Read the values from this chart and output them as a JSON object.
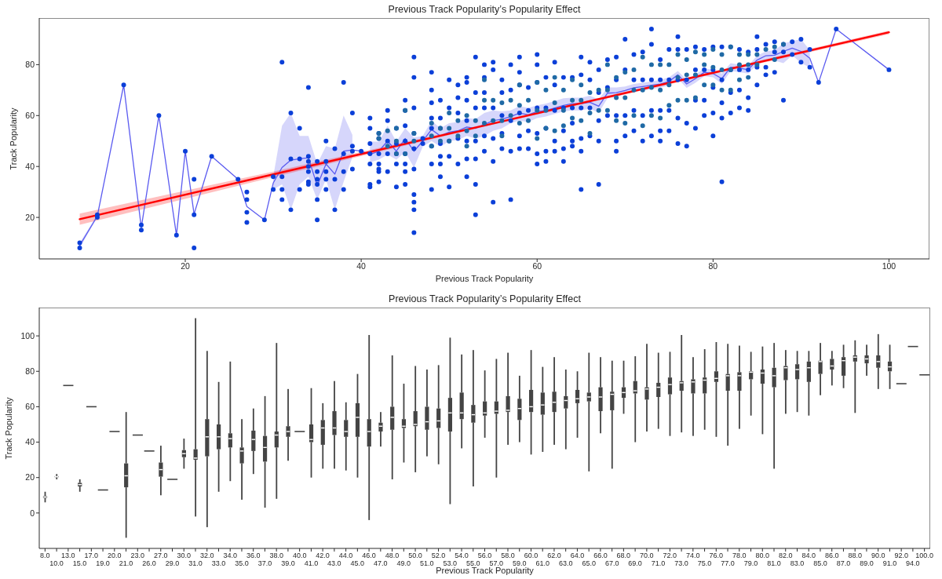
{
  "chart_data": [
    {
      "type": "scatter",
      "title": "Previous Track Popularity’s Popularity Effect",
      "xlabel": "Previous Track Popularity",
      "ylabel": "Track Popularity",
      "xlim": [
        3.4,
        104.6
      ],
      "ylim": [
        3.7,
        98.3
      ],
      "xticks": [
        20,
        40,
        60,
        80,
        100
      ],
      "yticks": [
        20,
        40,
        60,
        80
      ],
      "series": [
        {
          "type": "scatter",
          "color": "#0b3fd8",
          "marker": "circle",
          "x": [
            8,
            8,
            10,
            10,
            13,
            15,
            15,
            17,
            19,
            20,
            21,
            21,
            21,
            23,
            26,
            27,
            27,
            27,
            27,
            29,
            30,
            30,
            31,
            31,
            31,
            31,
            32,
            32,
            32,
            33,
            33,
            33,
            34,
            34,
            34,
            34,
            34,
            34,
            34,
            35,
            35,
            35,
            35,
            35,
            35,
            36,
            36,
            36,
            36,
            36,
            37,
            37,
            37,
            38,
            38,
            38,
            38,
            39,
            39,
            39,
            39,
            40,
            41,
            41,
            41,
            41,
            41,
            41,
            41,
            42,
            42,
            42,
            42,
            42,
            42,
            42,
            43,
            43,
            43,
            43,
            43,
            44,
            44,
            44,
            44,
            44,
            45,
            45,
            45,
            45,
            45,
            45,
            45,
            45,
            46,
            46,
            46,
            46,
            46,
            46,
            46,
            46,
            46,
            46,
            47,
            47,
            48,
            48,
            48,
            48,
            48,
            48,
            48,
            48,
            49,
            49,
            49,
            49,
            49,
            49,
            49,
            50,
            50,
            50,
            50,
            50,
            51,
            51,
            51,
            51,
            51,
            52,
            52,
            52,
            52,
            52,
            52,
            52,
            53,
            53,
            53,
            53,
            53,
            53,
            53,
            54,
            54,
            54,
            54,
            54,
            54,
            55,
            55,
            55,
            55,
            55,
            55,
            56,
            56,
            56,
            56,
            56,
            57,
            57,
            57,
            57,
            57,
            58,
            58,
            58,
            58,
            58,
            58,
            59,
            59,
            59,
            59,
            60,
            60,
            60,
            60,
            60,
            60,
            60,
            61,
            61,
            61,
            61,
            61,
            62,
            62,
            62,
            62,
            62,
            63,
            63,
            63,
            63,
            63,
            64,
            64,
            64,
            64,
            64,
            65,
            65,
            65,
            65,
            65,
            65,
            66,
            66,
            66,
            66,
            67,
            67,
            67,
            67,
            67,
            68,
            68,
            68,
            69,
            69,
            69,
            69,
            69,
            70,
            70,
            70,
            70,
            71,
            71,
            71,
            71,
            72,
            72,
            72,
            72,
            73,
            73,
            73,
            73,
            73,
            74,
            74,
            74,
            74,
            74,
            75,
            75,
            75,
            75,
            76,
            76,
            76,
            76,
            76,
            77,
            77,
            77,
            77,
            78,
            78,
            78,
            78,
            79,
            79,
            79,
            79,
            80,
            80,
            80,
            80,
            80,
            81,
            81,
            81,
            81,
            81,
            82,
            82,
            82,
            82,
            83,
            83,
            83,
            83,
            84,
            84,
            84,
            84,
            85,
            85,
            85,
            85,
            86,
            86,
            86,
            87,
            87,
            87,
            88,
            88,
            88,
            89,
            89,
            90,
            90,
            91,
            91,
            92,
            94,
            100
          ],
          "values": [
            10,
            8,
            21,
            20,
            72,
            17,
            15,
            60,
            13,
            46,
            35,
            21,
            8,
            44,
            35,
            30,
            27,
            22,
            18,
            19,
            36,
            31,
            81,
            36,
            31,
            27,
            61,
            43,
            23,
            55,
            43,
            31,
            71,
            44,
            42,
            40,
            38,
            34,
            33,
            42,
            38,
            35,
            33,
            27,
            19,
            50,
            42,
            38,
            35,
            31,
            47,
            35,
            23,
            73,
            45,
            38,
            31,
            61,
            48,
            46,
            39,
            46,
            59,
            55,
            49,
            45,
            41,
            33,
            32,
            53,
            51,
            45,
            41,
            39,
            38,
            34,
            62,
            58,
            50,
            45,
            38,
            55,
            49,
            45,
            41,
            32,
            66,
            62,
            56,
            50,
            45,
            41,
            38,
            33,
            83,
            75,
            63,
            53,
            47,
            39,
            29,
            26,
            23,
            14,
            51,
            49,
            77,
            70,
            65,
            59,
            55,
            48,
            41,
            31,
            66,
            59,
            55,
            49,
            44,
            41,
            36,
            74,
            63,
            50,
            44,
            32,
            72,
            67,
            61,
            51,
            41,
            75,
            73,
            66,
            58,
            50,
            43,
            36,
            83,
            69,
            63,
            50,
            43,
            33,
            21,
            80,
            75,
            69,
            63,
            52,
            46,
            81,
            78,
            63,
            51,
            42,
            26,
            74,
            69,
            60,
            53,
            47,
            80,
            70,
            58,
            46,
            27,
            83,
            77,
            72,
            61,
            52,
            47,
            71,
            62,
            54,
            47,
            84,
            80,
            73,
            63,
            53,
            45,
            41,
            75,
            63,
            55,
            46,
            42,
            81,
            72,
            62,
            50,
            46,
            75,
            63,
            54,
            47,
            42,
            75,
            63,
            57,
            50,
            48,
            83,
            76,
            63,
            51,
            46,
            31,
            81,
            74,
            63,
            52,
            78,
            69,
            58,
            50,
            33,
            82,
            71,
            60,
            83,
            74,
            60,
            50,
            46,
            90,
            78,
            60,
            52,
            84,
            74,
            62,
            54,
            85,
            74,
            60,
            50,
            94,
            88,
            74,
            62,
            52,
            82,
            74,
            62,
            54,
            50,
            86,
            74,
            62,
            54,
            91,
            86,
            74,
            59,
            49,
            86,
            74,
            57,
            48,
            87,
            78,
            66,
            55,
            86,
            78,
            66,
            60,
            87,
            78,
            71,
            61,
            52,
            87,
            74,
            65,
            59,
            34,
            87,
            78,
            69,
            61,
            86,
            78,
            70,
            63,
            85,
            78,
            67,
            62,
            91,
            86,
            79,
            72,
            88,
            79,
            76,
            89,
            85,
            77,
            88,
            85,
            66,
            89,
            84,
            90,
            81,
            86,
            79,
            73,
            94,
            78
          ]
        },
        {
          "type": "scatter",
          "color": "#1f6aa5",
          "marker": "circle",
          "x": [
            42,
            42,
            43,
            43,
            44,
            44,
            44,
            45,
            45,
            46,
            46,
            48,
            48,
            48,
            49,
            49,
            50,
            50,
            50,
            51,
            51,
            52,
            52,
            52,
            53,
            53,
            54,
            54,
            54,
            55,
            55,
            56,
            56,
            56,
            57,
            57,
            58,
            58,
            58,
            59,
            59,
            60,
            60,
            60,
            61,
            61,
            61,
            62,
            62,
            62,
            63,
            63,
            63,
            64,
            64,
            64,
            65,
            65,
            65,
            66,
            66,
            66,
            67,
            67,
            68,
            68,
            68,
            69,
            69,
            69,
            70,
            70,
            70,
            71,
            71,
            71,
            72,
            72,
            72,
            73,
            73,
            73,
            74,
            74,
            74,
            75,
            75,
            75,
            76,
            76,
            76,
            77,
            77,
            77,
            78,
            78,
            78,
            79,
            79,
            79,
            80,
            80,
            80,
            81,
            81,
            81,
            82,
            82,
            82,
            83,
            83,
            83,
            84,
            84,
            84,
            85,
            85,
            86,
            87,
            87,
            88
          ],
          "values": [
            53,
            51,
            54,
            48,
            55,
            50,
            45,
            62,
            45,
            53,
            50,
            57,
            52,
            48,
            55,
            50,
            61,
            55,
            50,
            58,
            52,
            60,
            54,
            48,
            58,
            52,
            74,
            66,
            57,
            66,
            58,
            65,
            58,
            52,
            66,
            60,
            72,
            64,
            57,
            66,
            58,
            73,
            62,
            51,
            70,
            62,
            55,
            75,
            65,
            54,
            70,
            62,
            56,
            74,
            66,
            59,
            72,
            66,
            58,
            69,
            61,
            53,
            70,
            62,
            80,
            70,
            62,
            75,
            67,
            58,
            77,
            67,
            57,
            78,
            70,
            60,
            83,
            70,
            56,
            80,
            71,
            60,
            80,
            70,
            59,
            80,
            72,
            64,
            84,
            75,
            66,
            82,
            76,
            66,
            85,
            76,
            67,
            84,
            80,
            72,
            86,
            79,
            72,
            84,
            78,
            70,
            87,
            78,
            70,
            84,
            80,
            74,
            84,
            80,
            75,
            84,
            80,
            86,
            87,
            82,
            88
          ]
        },
        {
          "type": "line",
          "color": "#5b5bf0",
          "x": [
            8,
            10,
            13,
            15,
            17,
            19,
            20,
            21,
            23,
            26,
            27,
            29,
            30,
            31,
            32,
            33,
            34,
            35,
            36,
            37,
            38,
            39,
            40,
            41,
            42,
            43,
            44,
            45,
            46,
            47,
            48,
            49,
            50,
            51,
            52,
            53,
            54,
            55,
            56,
            57,
            58,
            59,
            60,
            61,
            62,
            63,
            64,
            65,
            66,
            67,
            68,
            69,
            70,
            71,
            72,
            73,
            74,
            75,
            76,
            77,
            78,
            79,
            80,
            81,
            82,
            83,
            84,
            85,
            86,
            87,
            88,
            89,
            90,
            91,
            92,
            94,
            100
          ],
          "values": [
            9,
            20.5,
            72,
            16,
            60,
            13,
            46,
            21.3,
            44,
            35,
            24.3,
            19,
            33.5,
            39.6,
            42.5,
            43,
            43.4,
            32.4,
            41,
            37,
            46,
            46.5,
            46,
            44.7,
            46,
            50,
            46,
            51,
            46,
            50,
            54.5,
            52,
            53.5,
            54,
            55.5,
            55,
            56.5,
            58,
            58.6,
            59.6,
            61,
            60.3,
            61.6,
            62,
            63,
            64,
            64.7,
            64.7,
            65.2,
            63.7,
            68.8,
            69,
            69.8,
            70.9,
            71.4,
            71.9,
            72.4,
            73.4,
            76,
            72.4,
            74.5,
            77,
            76.5,
            74.5,
            79,
            78.6,
            78,
            81.8,
            83.5,
            83.7,
            85.2,
            86.5,
            85.2,
            82.5,
            73,
            94,
            78
          ],
          "lower": [
            8,
            20,
            null,
            null,
            null,
            null,
            null,
            null,
            null,
            null,
            null,
            null,
            31,
            33,
            23,
            33,
            36,
            27,
            35,
            23,
            34,
            43.7,
            null,
            41.6,
            42.7,
            44.7,
            42.7,
            45.7,
            39.6,
            47.8,
            50,
            47.8,
            50,
            50.4,
            52,
            51,
            52,
            54,
            55,
            57,
            58,
            57.5,
            59,
            59.6,
            60.6,
            61.6,
            62,
            62,
            62.7,
            61.1,
            66.8,
            67.3,
            68.3,
            69.3,
            69.8,
            70.4,
            70.9,
            71.9,
            74.5,
            70.9,
            72.9,
            75.5,
            75,
            72.4,
            77.5,
            77,
            76.5,
            80,
            81.6,
            81.6,
            80.6,
            83.7,
            80.6,
            79,
            null,
            null,
            null
          ],
          "upper": [
            10,
            21,
            null,
            null,
            null,
            null,
            null,
            null,
            null,
            null,
            null,
            null,
            36,
            56,
            61,
            52,
            52,
            41,
            48,
            47,
            60,
            52.4,
            null,
            49.8,
            49.8,
            56,
            49.8,
            55,
            51.4,
            52,
            58,
            55,
            57,
            57.5,
            59,
            58.6,
            61,
            62,
            61.6,
            62,
            63.7,
            63,
            64,
            64.7,
            65.7,
            66.8,
            67,
            67,
            67.8,
            66.3,
            71,
            71,
            71.4,
            72.4,
            72.9,
            73.4,
            74,
            75,
            77.5,
            74,
            76,
            78.6,
            78,
            76.5,
            80.6,
            80,
            79.6,
            83.5,
            85.2,
            85.7,
            88.3,
            89.3,
            90,
            85.7,
            null,
            null,
            null
          ]
        },
        {
          "type": "line",
          "color": "#ff0000",
          "x": [
            8,
            30,
            55,
            80,
            100
          ],
          "values": [
            19.3,
            36.9,
            56.9,
            76.8,
            92.7
          ],
          "lower": [
            17.1,
            35.8,
            56.5,
            76.3,
            92.0
          ],
          "upper": [
            21.5,
            38.0,
            57.3,
            77.3,
            93.4
          ]
        }
      ]
    },
    {
      "type": "box",
      "title": "Previous Track Popularity’s Popularity Effect",
      "xlabel": "Previous Track Popularity",
      "ylabel": "Track Popularity",
      "ylim": [
        -20,
        116
      ],
      "yticks": [
        0,
        20,
        40,
        60,
        80,
        100
      ],
      "color": "#444444",
      "categories": [
        "8.0",
        "10.0",
        "13.0",
        "15.0",
        "17.0",
        "19.0",
        "20.0",
        "21.0",
        "23.0",
        "26.0",
        "27.0",
        "29.0",
        "30.0",
        "31.0",
        "32.0",
        "33.0",
        "34.0",
        "35.0",
        "36.0",
        "37.0",
        "38.0",
        "39.0",
        "40.0",
        "41.0",
        "42.0",
        "43.0",
        "44.0",
        "45.0",
        "46.0",
        "47.0",
        "48.0",
        "49.0",
        "50.0",
        "51.0",
        "52.0",
        "53.0",
        "54.0",
        "55.0",
        "56.0",
        "57.0",
        "58.0",
        "59.0",
        "60.0",
        "61.0",
        "62.0",
        "63.0",
        "64.0",
        "65.0",
        "66.0",
        "67.0",
        "68.0",
        "69.0",
        "70.0",
        "71.0",
        "72.0",
        "73.0",
        "74.0",
        "75.0",
        "76.0",
        "77.0",
        "78.0",
        "79.0",
        "80.0",
        "81.0",
        "82.0",
        "83.0",
        "84.0",
        "85.0",
        "86.0",
        "87.0",
        "88.0",
        "89.0",
        "90.0",
        "91.0",
        "92.0",
        "94.0",
        "100.0"
      ],
      "boxes": [
        {
          "low": 6,
          "q1": 8.5,
          "median": 9,
          "q3": 9.5,
          "high": 12
        },
        {
          "low": 19,
          "q1": 20.2,
          "median": 20.5,
          "q3": 20.8,
          "high": 22
        },
        {
          "low": 72,
          "q1": 72,
          "median": 72,
          "q3": 72,
          "high": 72
        },
        {
          "low": 12,
          "q1": 15,
          "median": 16,
          "q3": 17,
          "high": 19
        },
        {
          "low": 60,
          "q1": 60,
          "median": 60,
          "q3": 60,
          "high": 60
        },
        {
          "low": 13,
          "q1": 13,
          "median": 13,
          "q3": 13,
          "high": 13
        },
        {
          "low": 46,
          "q1": 46,
          "median": 46,
          "q3": 46,
          "high": 46
        },
        {
          "low": -14,
          "q1": 14.5,
          "median": 21,
          "q3": 28,
          "high": 57
        },
        {
          "low": 44,
          "q1": 44,
          "median": 44,
          "q3": 44,
          "high": 44
        },
        {
          "low": 35,
          "q1": 35,
          "median": 35,
          "q3": 35,
          "high": 35
        },
        {
          "low": 10,
          "q1": 20.5,
          "median": 24.5,
          "q3": 28.5,
          "high": 38
        },
        {
          "low": 19,
          "q1": 19,
          "median": 19,
          "q3": 19,
          "high": 19
        },
        {
          "low": 25,
          "q1": 31.5,
          "median": 33.5,
          "q3": 35.5,
          "high": 42
        },
        {
          "low": -2,
          "q1": 30,
          "median": 31,
          "q3": 36,
          "high": 110
        },
        {
          "low": -8,
          "q1": 32,
          "median": 43,
          "q3": 53,
          "high": 91.5
        },
        {
          "low": 12,
          "q1": 36,
          "median": 43,
          "q3": 50,
          "high": 74
        },
        {
          "low": 18,
          "q1": 37,
          "median": 42,
          "q3": 45,
          "high": 85.5
        },
        {
          "low": 7.5,
          "q1": 28,
          "median": 35,
          "q3": 37,
          "high": 53
        },
        {
          "low": 22,
          "q1": 35,
          "median": 41.5,
          "q3": 46.5,
          "high": 59
        },
        {
          "low": 3,
          "q1": 29,
          "median": 37,
          "q3": 43.5,
          "high": 66
        },
        {
          "low": 8,
          "q1": 37,
          "median": 44,
          "q3": 46,
          "high": 96
        },
        {
          "low": 29.5,
          "q1": 43,
          "median": 46,
          "q3": 49,
          "high": 70
        },
        {
          "low": 46,
          "q1": 46,
          "median": 46,
          "q3": 46,
          "high": 46
        },
        {
          "low": 20,
          "q1": 40,
          "median": 41.5,
          "q3": 50,
          "high": 70.5
        },
        {
          "low": 25,
          "q1": 38.5,
          "median": 48,
          "q3": 52.5,
          "high": 62
        },
        {
          "low": 25,
          "q1": 44,
          "median": 48,
          "q3": 57.5,
          "high": 74.5
        },
        {
          "low": 24,
          "q1": 43,
          "median": 46,
          "q3": 52.5,
          "high": 62.5
        },
        {
          "low": 20,
          "q1": 43,
          "median": 54,
          "q3": 62,
          "high": 78.5
        },
        {
          "low": -4,
          "q1": 37.5,
          "median": 46,
          "q3": 53,
          "high": 100.5
        },
        {
          "low": 37.5,
          "q1": 46,
          "median": 49,
          "q3": 51,
          "high": 57
        },
        {
          "low": 19,
          "q1": 47,
          "median": 54,
          "q3": 60,
          "high": 89
        },
        {
          "low": 28.5,
          "q1": 48,
          "median": 49,
          "q3": 53,
          "high": 73
        },
        {
          "low": 23,
          "q1": 49,
          "median": 50,
          "q3": 57.5,
          "high": 83
        },
        {
          "low": 32,
          "q1": 47,
          "median": 51.5,
          "q3": 60,
          "high": 81
        },
        {
          "low": 27.5,
          "q1": 48,
          "median": 52,
          "q3": 59,
          "high": 83.5
        },
        {
          "low": 5,
          "q1": 46,
          "median": 56.5,
          "q3": 65,
          "high": 99
        },
        {
          "low": 36.5,
          "q1": 53,
          "median": 56.5,
          "q3": 68,
          "high": 89.5
        },
        {
          "low": 15,
          "q1": 51,
          "median": 55.5,
          "q3": 61,
          "high": 92
        },
        {
          "low": 42.5,
          "q1": 55,
          "median": 56.5,
          "q3": 63,
          "high": 80.5
        },
        {
          "low": 20,
          "q1": 56,
          "median": 57.5,
          "q3": 63,
          "high": 87
        },
        {
          "low": 38.5,
          "q1": 57,
          "median": 58,
          "q3": 66,
          "high": 90.5
        },
        {
          "low": 40,
          "q1": 52.5,
          "median": 59,
          "q3": 64.5,
          "high": 77.5
        },
        {
          "low": 33,
          "q1": 57,
          "median": 60,
          "q3": 69.5,
          "high": 92
        },
        {
          "low": 34.5,
          "q1": 55.5,
          "median": 61,
          "q3": 68,
          "high": 82.5
        },
        {
          "low": 38.5,
          "q1": 57,
          "median": 62.5,
          "q3": 68.5,
          "high": 88
        },
        {
          "low": 36,
          "q1": 59,
          "median": 63.5,
          "q3": 66,
          "high": 81
        },
        {
          "low": 42.5,
          "q1": 62,
          "median": 64.5,
          "q3": 69.5,
          "high": 80
        },
        {
          "low": 23.5,
          "q1": 63,
          "median": 65.5,
          "q3": 68,
          "high": 90.5
        },
        {
          "low": 45,
          "q1": 57.5,
          "median": 65.5,
          "q3": 71,
          "high": 88
        },
        {
          "low": 25,
          "q1": 58,
          "median": 67,
          "q3": 68.5,
          "high": 86
        },
        {
          "low": 56,
          "q1": 65,
          "median": 68,
          "q3": 71,
          "high": 86
        },
        {
          "low": 40,
          "q1": 67.5,
          "median": 69,
          "q3": 74.5,
          "high": 88.5
        },
        {
          "low": 46,
          "q1": 64,
          "median": 70,
          "q3": 71,
          "high": 95.5
        },
        {
          "low": 47.5,
          "q1": 65.5,
          "median": 71,
          "q3": 73.5,
          "high": 90.5
        },
        {
          "low": 43.5,
          "q1": 67,
          "median": 72.5,
          "q3": 76.5,
          "high": 91
        },
        {
          "low": 45.5,
          "q1": 69,
          "median": 73.5,
          "q3": 74.5,
          "high": 100.5
        },
        {
          "low": 43.5,
          "q1": 67.5,
          "median": 74,
          "q3": 75.5,
          "high": 88
        },
        {
          "low": 47,
          "q1": 67.5,
          "median": 75,
          "q3": 76.5,
          "high": 92.5
        },
        {
          "low": 43,
          "q1": 74,
          "median": 76,
          "q3": 80,
          "high": 96.5
        },
        {
          "low": 38,
          "q1": 69,
          "median": 77.5,
          "q3": 78.5,
          "high": 95.5
        },
        {
          "low": 47.5,
          "q1": 69,
          "median": 77.5,
          "q3": 79.5,
          "high": 94.5
        },
        {
          "low": 55,
          "q1": 75.5,
          "median": 79.5,
          "q3": 80,
          "high": 91
        },
        {
          "low": 44.5,
          "q1": 73,
          "median": 79,
          "q3": 81,
          "high": 94
        },
        {
          "low": 25,
          "q1": 71,
          "median": 77.5,
          "q3": 82,
          "high": 96
        },
        {
          "low": 56,
          "q1": 75,
          "median": 82,
          "q3": 83,
          "high": 92
        },
        {
          "low": 57,
          "q1": 75.5,
          "median": 81,
          "q3": 84,
          "high": 91.5
        },
        {
          "low": 55,
          "q1": 74,
          "median": 82,
          "q3": 85.5,
          "high": 91.5
        },
        {
          "low": 66.5,
          "q1": 78.5,
          "median": 85.5,
          "q3": 86,
          "high": 96
        },
        {
          "low": 72,
          "q1": 81,
          "median": 83,
          "q3": 87,
          "high": 91.5
        },
        {
          "low": 70.5,
          "q1": 77.5,
          "median": 86,
          "q3": 88,
          "high": 95
        },
        {
          "low": 56.5,
          "q1": 85.5,
          "median": 88,
          "q3": 89,
          "high": 97.5
        },
        {
          "low": 77.5,
          "q1": 84.5,
          "median": 87,
          "q3": 89,
          "high": 95
        },
        {
          "low": 70,
          "q1": 82,
          "median": 85.5,
          "q3": 89,
          "high": 101
        },
        {
          "low": 70,
          "q1": 80,
          "median": 82.5,
          "q3": 85.5,
          "high": 95
        },
        {
          "low": 73,
          "q1": 73,
          "median": 73,
          "q3": 73,
          "high": 73
        },
        {
          "low": 94,
          "q1": 94,
          "median": 94,
          "q3": 94,
          "high": 94
        },
        {
          "low": 78,
          "q1": 78,
          "median": 78,
          "q3": 78,
          "high": 78
        }
      ]
    }
  ]
}
